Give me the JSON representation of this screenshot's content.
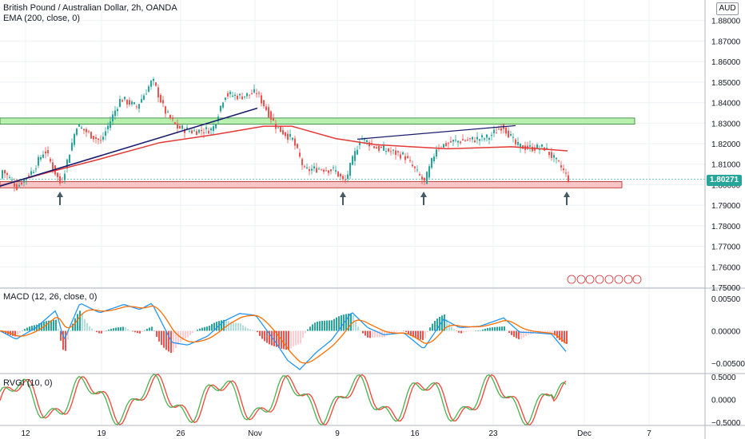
{
  "chart_title": "British Pound / Australian Dollar, 2h, OANDA",
  "currency": "AUD",
  "last_price": "1.80271",
  "colors": {
    "up": "#26a69a",
    "down": "#ef5350",
    "ema": "#e53935",
    "trendline": "#1a1d6e",
    "resistance_zone": "#b8f0b0",
    "support_zone": "#f8c6c6",
    "macd_line": "#2196f3",
    "signal_line": "#ff6d00",
    "rvgi_line": "#4caf50",
    "rvgi_signal": "#f44336"
  },
  "panes": {
    "price": {
      "indicator": "EMA (200, close, 0)",
      "ticks": [
        "1.88000",
        "1.87000",
        "1.86000",
        "1.85000",
        "1.84000",
        "1.83000",
        "1.82000",
        "1.81000",
        "1.80000",
        "1.79000",
        "1.78000",
        "1.77000",
        "1.76000",
        "1.75000"
      ]
    },
    "macd": {
      "indicator": "MACD (12, 26, close, 0)",
      "ticks": [
        "0.00500",
        "0.00000",
        "−0.00500"
      ]
    },
    "rvgi": {
      "indicator": "RVGI (10, 0)",
      "ticks": [
        "0.5000",
        "0.0000",
        "−0.5000"
      ]
    }
  },
  "x_axis": {
    "ticks": [
      "12",
      "19",
      "26",
      "Nov",
      "9",
      "16",
      "23",
      "Dec",
      "7"
    ]
  },
  "chart_data": {
    "type": "candlestick",
    "y_range": [
      1.75,
      1.89
    ],
    "price_tick_values": [
      1.88,
      1.87,
      1.86,
      1.85,
      1.84,
      1.83,
      1.82,
      1.81,
      1.8,
      1.79,
      1.78,
      1.77,
      1.76,
      1.75
    ],
    "zones": [
      {
        "type": "resistance",
        "low": 1.8295,
        "high": 1.8325
      },
      {
        "type": "support",
        "low": 1.7985,
        "high": 1.8015
      }
    ],
    "last_price": 1.80271,
    "macd_range": [
      -0.0065,
      0.0065
    ],
    "macd_tick_values": [
      0.005,
      0.0,
      -0.005
    ],
    "rvgi_range": [
      -0.55,
      0.55
    ],
    "rvgi_tick_values": [
      0.5,
      0.0,
      -0.5
    ]
  }
}
